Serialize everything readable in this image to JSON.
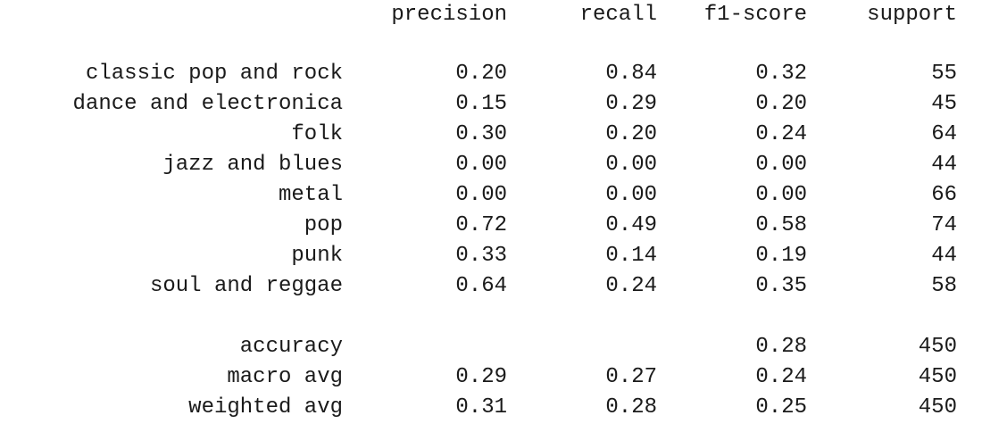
{
  "header": {
    "precision": "precision",
    "recall": "recall",
    "f1_score": "f1-score",
    "support": "support"
  },
  "classes": [
    {
      "label": "classic pop and rock",
      "precision": "0.20",
      "recall": "0.84",
      "f1": "0.32",
      "support": "55"
    },
    {
      "label": "dance and electronica",
      "precision": "0.15",
      "recall": "0.29",
      "f1": "0.20",
      "support": "45"
    },
    {
      "label": "folk",
      "precision": "0.30",
      "recall": "0.20",
      "f1": "0.24",
      "support": "64"
    },
    {
      "label": "jazz and blues",
      "precision": "0.00",
      "recall": "0.00",
      "f1": "0.00",
      "support": "44"
    },
    {
      "label": "metal",
      "precision": "0.00",
      "recall": "0.00",
      "f1": "0.00",
      "support": "66"
    },
    {
      "label": "pop",
      "precision": "0.72",
      "recall": "0.49",
      "f1": "0.58",
      "support": "74"
    },
    {
      "label": "punk",
      "precision": "0.33",
      "recall": "0.14",
      "f1": "0.19",
      "support": "44"
    },
    {
      "label": "soul and reggae",
      "precision": "0.64",
      "recall": "0.24",
      "f1": "0.35",
      "support": "58"
    }
  ],
  "summary": [
    {
      "label": "accuracy",
      "precision": "",
      "recall": "",
      "f1": "0.28",
      "support": "450"
    },
    {
      "label": "macro avg",
      "precision": "0.29",
      "recall": "0.27",
      "f1": "0.24",
      "support": "450"
    },
    {
      "label": "weighted avg",
      "precision": "0.31",
      "recall": "0.28",
      "f1": "0.25",
      "support": "450"
    }
  ]
}
